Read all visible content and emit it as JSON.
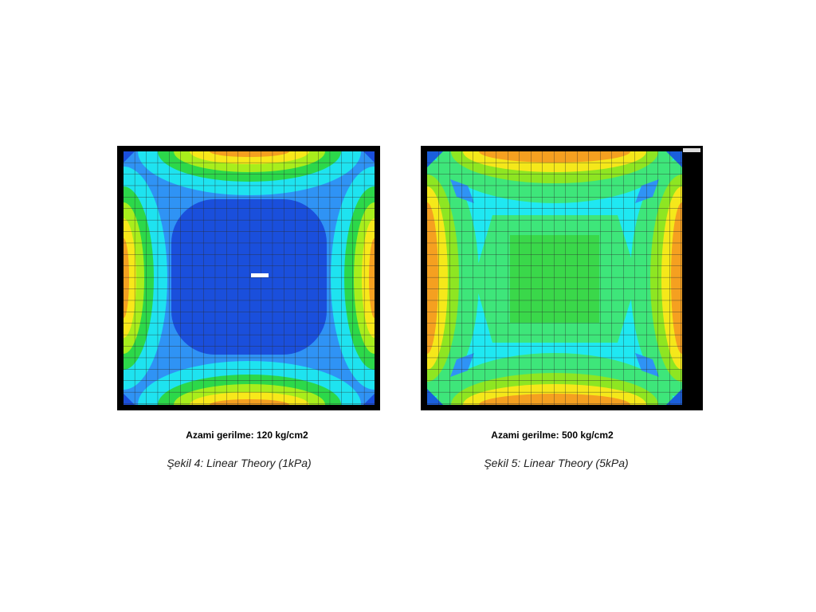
{
  "figures": [
    {
      "max_stress": "Azami gerilme: 120 kg/cm2",
      "caption": "Şekil 4: Linear Theory (1kPa)"
    },
    {
      "max_stress": "Azami gerilme: 500 kg/cm2",
      "caption": "Şekil 5: Linear Theory (5kPa)"
    }
  ]
}
